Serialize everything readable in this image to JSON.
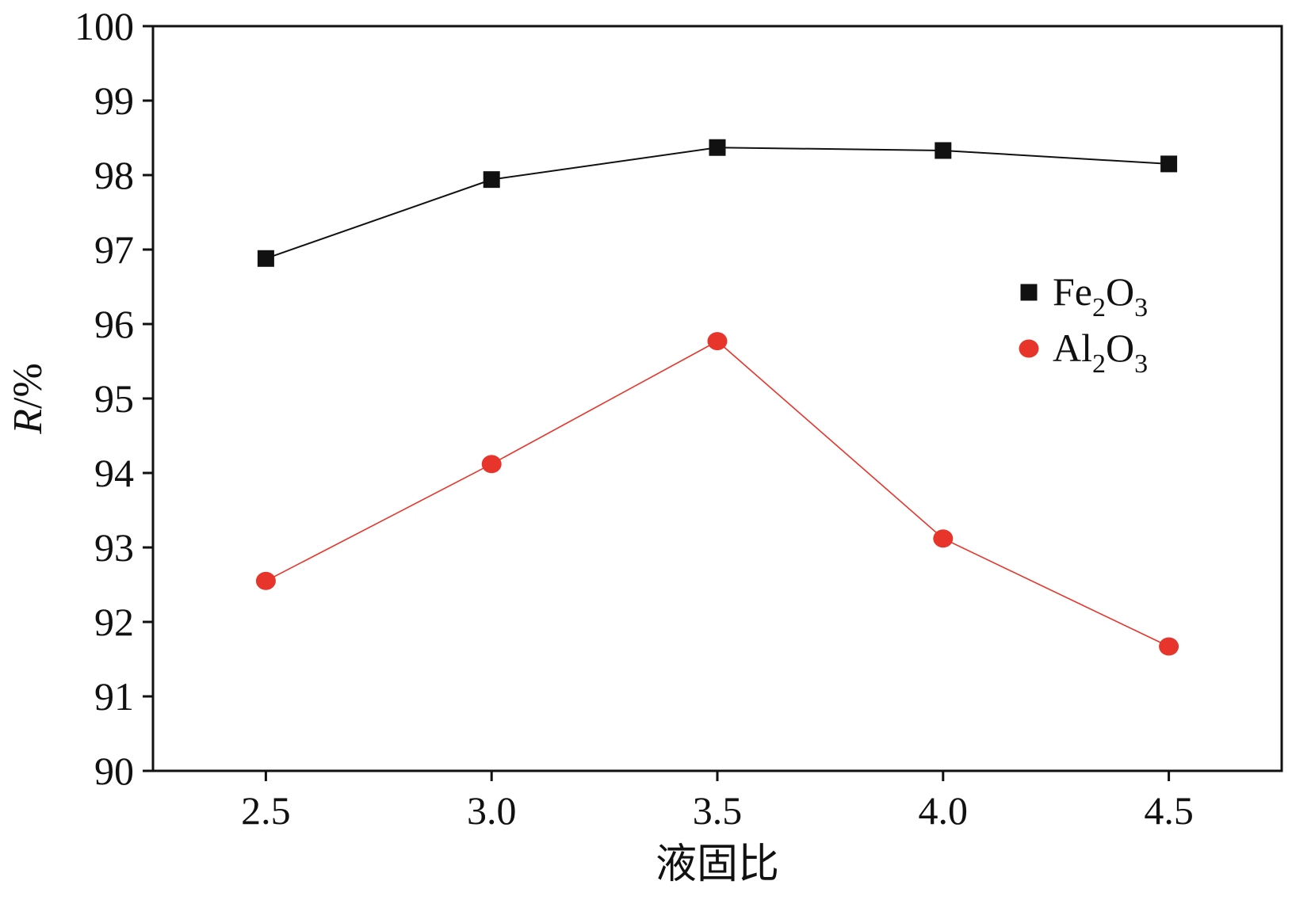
{
  "chart_data": {
    "type": "line",
    "x": [
      2.5,
      3.0,
      3.5,
      4.0,
      4.5
    ],
    "xtick_labels": [
      "2.5",
      "3.0",
      "3.5",
      "4.0",
      "4.5"
    ],
    "yticks": [
      90,
      91,
      92,
      93,
      94,
      95,
      96,
      97,
      98,
      99,
      100
    ],
    "ytick_labels": [
      "90",
      "91",
      "92",
      "93",
      "94",
      "95",
      "96",
      "97",
      "98",
      "99",
      "100"
    ],
    "xlim": [
      2.25,
      4.75
    ],
    "ylim": [
      90,
      100
    ],
    "xlabel": "液固比",
    "ylabel": "R/%",
    "grid": false,
    "legend_position": "right",
    "series": [
      {
        "name": "Fe2O3",
        "values": [
          96.88,
          97.94,
          98.37,
          98.33,
          98.15
        ],
        "color": "#111111",
        "marker": "square"
      },
      {
        "name": "Al2O3",
        "values": [
          92.55,
          94.12,
          95.77,
          93.12,
          91.67
        ],
        "color": "#e8352b",
        "marker": "circle"
      }
    ]
  }
}
